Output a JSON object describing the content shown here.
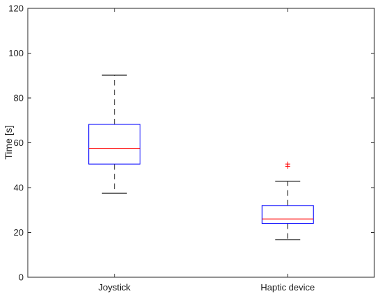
{
  "chart_data": {
    "type": "box",
    "title": "",
    "xlabel": "",
    "ylabel": "Time [s]",
    "ylim": [
      0,
      120
    ],
    "yticks": [
      0,
      20,
      40,
      60,
      80,
      100,
      120
    ],
    "grid": false,
    "categories": [
      "Joystick",
      "Haptic device"
    ],
    "boxes": [
      {
        "category": "Joystick",
        "whisker_low": 37.5,
        "q1": 50.5,
        "median": 57.5,
        "q3": 68.2,
        "whisker_high": 90.2,
        "outliers": []
      },
      {
        "category": "Haptic device",
        "whisker_low": 16.8,
        "q1": 24,
        "median": 26,
        "q3": 32,
        "whisker_high": 42.8,
        "outliers": [
          49.5,
          50.5
        ]
      }
    ],
    "colors": {
      "box": "#0000ff",
      "median": "#ff0000",
      "whisker": "#000000",
      "outlier": "#ff0000"
    }
  }
}
